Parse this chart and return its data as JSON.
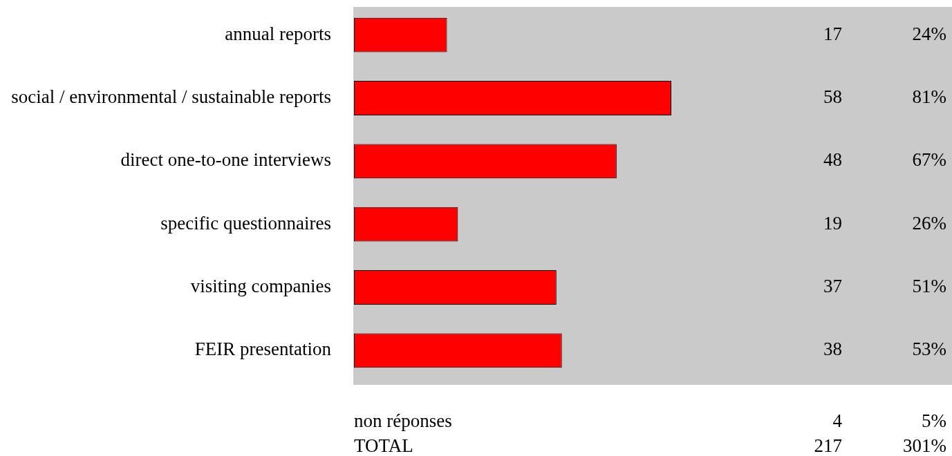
{
  "chart_data": {
    "type": "bar",
    "orientation": "horizontal",
    "categories": [
      "annual reports",
      "social / environmental / sustainable reports",
      "direct one-to-one interviews",
      "specific questionnaires",
      "visiting companies",
      "FEIR presentation"
    ],
    "values": [
      17,
      58,
      48,
      19,
      37,
      38
    ],
    "color": "#ff0000",
    "data_labels": true,
    "annotations": [
      "24%",
      "81%",
      "67%",
      "26%",
      "51%",
      "53%",
      "non réponses",
      "4",
      "5%",
      "TOTAL",
      "217",
      "301%"
    ]
  }
}
